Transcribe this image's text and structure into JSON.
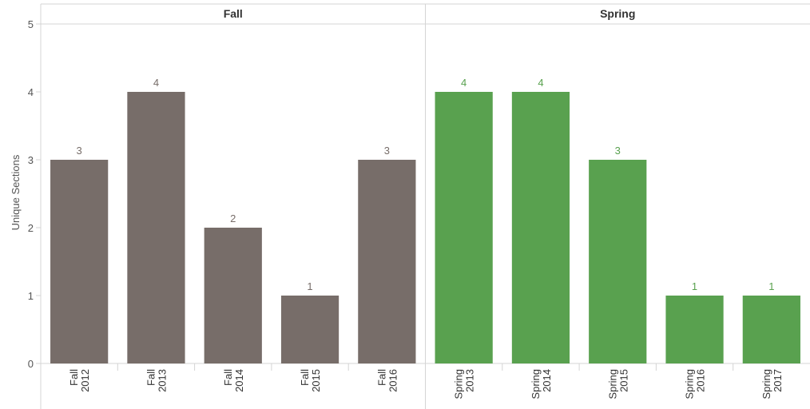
{
  "chart_data": {
    "type": "bar",
    "ylabel": "Unique Sections",
    "ylim": [
      0,
      5
    ],
    "yticks": [
      0,
      1,
      2,
      3,
      4,
      5
    ],
    "grid": false,
    "panels": [
      {
        "name": "Fall",
        "color": "#776d69",
        "label_color": "#776d69",
        "categories": [
          [
            "Fall",
            "2012"
          ],
          [
            "Fall",
            "2013"
          ],
          [
            "Fall",
            "2014"
          ],
          [
            "Fall",
            "2015"
          ],
          [
            "Fall",
            "2016"
          ]
        ],
        "values": [
          3,
          4,
          2,
          1,
          3
        ]
      },
      {
        "name": "Spring",
        "color": "#59a14f",
        "label_color": "#59a14f",
        "categories": [
          [
            "Spring",
            "2013"
          ],
          [
            "Spring",
            "2014"
          ],
          [
            "Spring",
            "2015"
          ],
          [
            "Spring",
            "2016"
          ],
          [
            "Spring",
            "2017"
          ]
        ],
        "values": [
          4,
          4,
          3,
          1,
          1
        ]
      }
    ]
  }
}
